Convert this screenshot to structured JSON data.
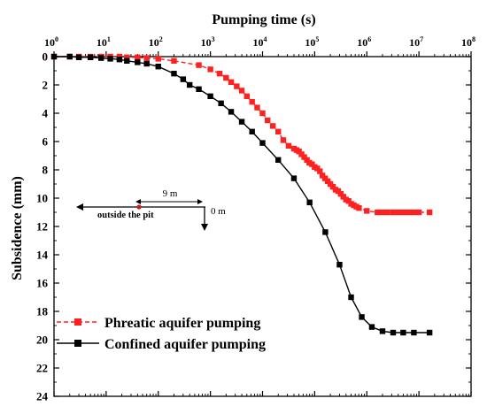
{
  "chart_data": {
    "type": "line",
    "xlabel": "Pumping time (s)",
    "ylabel": "Subsidence (mm)",
    "x_scale": "log",
    "xlim": [
      1,
      100000000
    ],
    "ylim": [
      0,
      24
    ],
    "y_inverted": true,
    "x_ticks": [
      1,
      10,
      100,
      1000,
      10000,
      100000,
      1000000,
      10000000,
      100000000
    ],
    "x_tick_labels": [
      {
        "base": "10",
        "exp": "0"
      },
      {
        "base": "10",
        "exp": "1"
      },
      {
        "base": "10",
        "exp": "2"
      },
      {
        "base": "10",
        "exp": "3"
      },
      {
        "base": "10",
        "exp": "4"
      },
      {
        "base": "10",
        "exp": "5"
      },
      {
        "base": "10",
        "exp": "6"
      },
      {
        "base": "10",
        "exp": "7"
      },
      {
        "base": "10",
        "exp": "8"
      }
    ],
    "y_ticks": [
      0,
      2,
      4,
      6,
      8,
      10,
      12,
      14,
      16,
      18,
      20,
      22,
      24
    ],
    "y_tick_labels": [
      "0",
      "2",
      "4",
      "6",
      "8",
      "10",
      "12",
      "14",
      "16",
      "18",
      "20",
      "22",
      "24"
    ],
    "grid": false,
    "legend_position": "bottom-left",
    "series": [
      {
        "name": "Phreatic aquifer pumping",
        "color": "#ff2020",
        "marker": "square",
        "x": [
          1,
          2,
          3,
          5,
          8,
          12,
          18,
          25,
          40,
          60,
          100,
          200,
          600,
          1000,
          1500,
          2000,
          2500,
          3200,
          4000,
          5000,
          6300,
          7900,
          10000,
          12500,
          15800,
          20000,
          25000,
          31600,
          40000,
          45000,
          50000,
          56000,
          63000,
          71000,
          79000,
          89000,
          100000,
          112000,
          126000,
          141000,
          158000,
          178000,
          200000,
          224000,
          251000,
          282000,
          316000,
          355000,
          398000,
          447000,
          501000,
          562000,
          631000,
          708000,
          1000000,
          1600000,
          2000000,
          2500000,
          3200000,
          4000000,
          5000000,
          6300000,
          8000000,
          10000000,
          16000000
        ],
        "values": [
          0.0,
          0.0,
          0.0,
          0.0,
          0.0,
          0.0,
          0.0,
          0.05,
          0.05,
          0.1,
          0.15,
          0.3,
          0.6,
          0.9,
          1.2,
          1.5,
          1.8,
          2.1,
          2.4,
          2.8,
          3.2,
          3.6,
          4.0,
          4.5,
          4.9,
          5.3,
          5.9,
          6.3,
          6.5,
          6.6,
          6.7,
          6.9,
          7.1,
          7.3,
          7.5,
          7.6,
          7.8,
          7.9,
          8.1,
          8.4,
          8.6,
          8.8,
          9.0,
          9.2,
          9.4,
          9.5,
          9.7,
          9.9,
          10.1,
          10.2,
          10.4,
          10.5,
          10.6,
          10.7,
          10.9,
          11.0,
          11.0,
          11.0,
          11.0,
          11.0,
          11.0,
          11.0,
          11.0,
          11.0,
          11.0
        ]
      },
      {
        "name": "Confined aquifer pumping",
        "color": "#000000",
        "marker": "square",
        "x": [
          1,
          2,
          3,
          5,
          8,
          12,
          18,
          25,
          40,
          60,
          100,
          200,
          300,
          400,
          600,
          1000,
          1600,
          2500,
          4000,
          6300,
          10000,
          20000,
          40000,
          80000,
          160000,
          300000,
          500000,
          800000,
          1250000,
          2000000,
          3200000,
          5000000,
          8000000,
          16000000
        ],
        "values": [
          0.0,
          0.0,
          0.05,
          0.05,
          0.1,
          0.15,
          0.2,
          0.3,
          0.4,
          0.5,
          0.7,
          1.2,
          1.6,
          2.0,
          2.3,
          2.8,
          3.3,
          3.9,
          4.6,
          5.3,
          6.1,
          7.3,
          8.6,
          10.3,
          12.4,
          14.7,
          17.0,
          18.4,
          19.1,
          19.4,
          19.5,
          19.5,
          19.5,
          19.5
        ]
      }
    ],
    "annotations": {
      "distance_label": "9 m",
      "origin_label": "0 m",
      "outside_label": "outside the pit"
    }
  }
}
